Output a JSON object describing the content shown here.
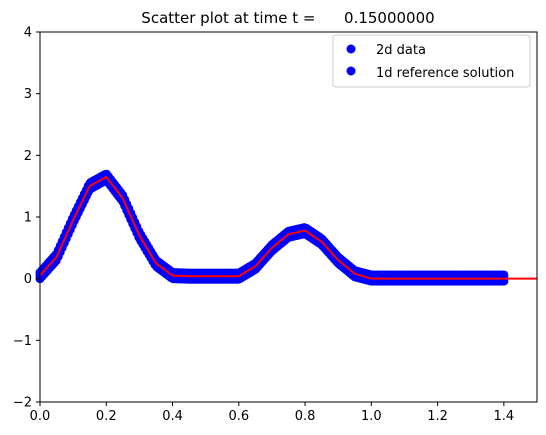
{
  "chart_data": {
    "type": "scatter",
    "title": "Scatter plot at time t =      0.15000000",
    "xlim": [
      0.0,
      1.5
    ],
    "ylim": [
      -2,
      4
    ],
    "xticks": [
      0.0,
      0.2,
      0.4,
      0.6,
      0.8,
      1.0,
      1.2,
      1.4
    ],
    "yticks": [
      -2,
      -1,
      0,
      1,
      2,
      3,
      4
    ],
    "xtick_labels": [
      "0.0",
      "0.2",
      "0.4",
      "0.6",
      "0.8",
      "1.0",
      "1.2",
      "1.4"
    ],
    "ytick_labels": [
      "−2",
      "−1",
      "0",
      "1",
      "2",
      "3",
      "4"
    ],
    "grid": false,
    "legend_position": "top-right",
    "series": [
      {
        "name": "2d data",
        "kind": "markers",
        "color": "#0000ff",
        "x_range": [
          0.0,
          1.4
        ],
        "x": [
          0.0,
          0.05,
          0.1,
          0.15,
          0.2,
          0.25,
          0.3,
          0.35,
          0.4,
          0.45,
          0.5,
          0.55,
          0.6,
          0.65,
          0.7,
          0.75,
          0.8,
          0.85,
          0.9,
          0.95,
          1.0,
          1.05,
          1.1,
          1.2,
          1.3,
          1.4
        ],
        "y": [
          0.05,
          0.35,
          0.95,
          1.5,
          1.65,
          1.3,
          0.7,
          0.25,
          0.05,
          0.04,
          0.04,
          0.04,
          0.04,
          0.2,
          0.5,
          0.72,
          0.78,
          0.6,
          0.3,
          0.08,
          0.01,
          0.01,
          0.01,
          0.01,
          0.01,
          0.01
        ]
      },
      {
        "name": "1d reference solution",
        "kind": "line",
        "color": "#ff0000",
        "x": [
          0.0,
          0.05,
          0.1,
          0.15,
          0.2,
          0.25,
          0.3,
          0.35,
          0.4,
          0.45,
          0.5,
          0.55,
          0.6,
          0.65,
          0.7,
          0.75,
          0.8,
          0.85,
          0.9,
          0.95,
          1.0,
          1.1,
          1.2,
          1.3,
          1.4,
          1.5
        ],
        "y": [
          0.05,
          0.35,
          0.95,
          1.5,
          1.65,
          1.3,
          0.7,
          0.25,
          0.05,
          0.04,
          0.04,
          0.04,
          0.04,
          0.2,
          0.5,
          0.72,
          0.78,
          0.6,
          0.3,
          0.08,
          0.0,
          0.0,
          0.0,
          0.0,
          0.0,
          0.0
        ]
      }
    ],
    "legend": [
      {
        "label": "2d data",
        "color": "#0000ff"
      },
      {
        "label": "1d reference solution",
        "color": "#0000ff"
      }
    ]
  }
}
